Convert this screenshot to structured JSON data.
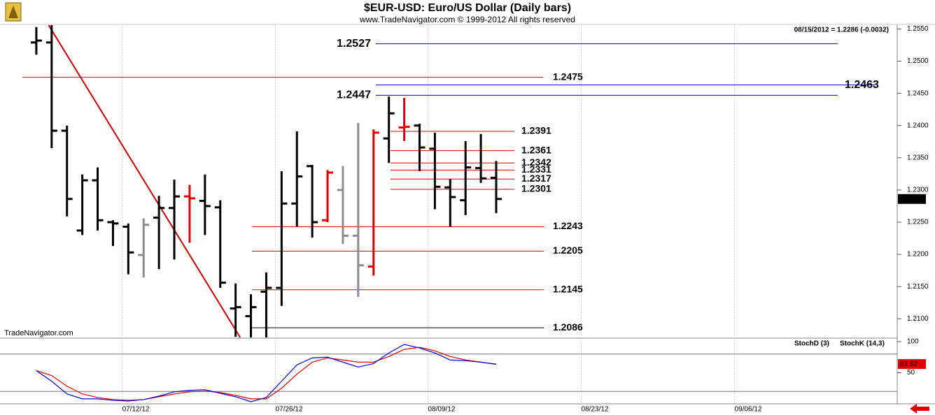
{
  "chart_data": {
    "type": "ohlc",
    "title": "$EUR-USD:  Euro/US Dollar  (Daily bars)",
    "subtitle": "www.TradeNavigator.com © 1999-2012 All rights reserved",
    "info": "08/15/2012 = 1.2286 (-0.0032)",
    "watermark": "TradeNavigator.com",
    "xlim": [
      -2.37,
      56.07
    ],
    "xticks": [
      {
        "value": 5.6,
        "label": "07/12/12"
      },
      {
        "value": 15.6,
        "label": "07/26/12"
      },
      {
        "value": 25.55,
        "label": "08/09/12"
      },
      {
        "value": 35.55,
        "label": "08/23/12"
      },
      {
        "value": 45.55,
        "label": "09/06/12"
      }
    ],
    "ylim": [
      1.2071,
      1.2557
    ],
    "yticks": [
      {
        "value": 1.255,
        "label": "1.2550"
      },
      {
        "value": 1.25,
        "label": "1.2500"
      },
      {
        "value": 1.245,
        "label": "1.2450"
      },
      {
        "value": 1.24,
        "label": "1.2400"
      },
      {
        "value": 1.235,
        "label": "1.2350"
      },
      {
        "value": 1.23,
        "label": "1.2300"
      },
      {
        "value": 1.225,
        "label": "1.2250"
      },
      {
        "value": 1.22,
        "label": "1.2200"
      },
      {
        "value": 1.215,
        "label": "1.2150"
      },
      {
        "value": 1.21,
        "label": "1.2100"
      }
    ],
    "open": [
      1.2529,
      1.2529,
      1.2392,
      1.2237,
      1.2315,
      1.225,
      1.2243,
      1.2199,
      1.2257,
      1.2272,
      1.229,
      1.2283,
      1.2273,
      1.2116,
      1.2104,
      1.2142,
      1.2148,
      1.2279,
      1.2337,
      1.2253,
      1.23,
      1.2229,
      1.2181,
      1.238,
      1.2397,
      1.24,
      1.2364,
      1.2304,
      1.2284,
      1.2334,
      1.2319
    ],
    "high": [
      1.2553,
      1.2556,
      1.24,
      1.2324,
      1.2335,
      1.2253,
      1.2248,
      1.2256,
      1.2291,
      1.2316,
      1.2308,
      1.2324,
      1.2284,
      1.2155,
      1.2138,
      1.2172,
      1.2329,
      1.2391,
      1.2339,
      1.2331,
      1.2337,
      1.2404,
      1.2394,
      1.2445,
      1.2443,
      1.2403,
      1.2389,
      1.2317,
      1.2376,
      1.2387,
      1.2345
    ],
    "low": [
      1.251,
      1.2365,
      1.2259,
      1.223,
      1.2237,
      1.2213,
      1.2169,
      1.2164,
      1.2177,
      1.2192,
      1.2218,
      1.223,
      1.2148,
      1.2072,
      1.2071,
      1.2071,
      1.212,
      1.2243,
      1.2226,
      1.225,
      1.2216,
      1.2134,
      1.2167,
      1.2342,
      1.2376,
      1.2329,
      1.227,
      1.2243,
      1.2261,
      1.2311,
      1.2264
    ],
    "close": [
      1.2532,
      1.2392,
      1.2286,
      1.2315,
      1.2253,
      1.2248,
      1.2203,
      1.2246,
      1.2272,
      1.229,
      1.2287,
      1.2275,
      1.2156,
      1.2118,
      1.2118,
      1.2148,
      1.2279,
      1.2321,
      1.225,
      1.2327,
      1.2229,
      1.2183,
      1.2389,
      1.2419,
      1.2398,
      1.2366,
      1.2305,
      1.2289,
      1.2335,
      1.2318,
      1.2286
    ],
    "colors": [
      "#000000",
      "#000000",
      "#000000",
      "#000000",
      "#000000",
      "#000000",
      "#000000",
      "#8c8c8c",
      "#000000",
      "#000000",
      "#e00000",
      "#000000",
      "#000000",
      "#000000",
      "#000000",
      "#000000",
      "#000000",
      "#000000",
      "#000000",
      "#e00000",
      "#8c8c8c",
      "#8c8c8c",
      "#e00000",
      "#000000",
      "#e00000",
      "#000000",
      "#000000",
      "#000000",
      "#000000",
      "#000000",
      "#000000"
    ],
    "trendline": {
      "x": [
        0.8,
        13.3
      ],
      "values": [
        1.2556,
        1.2071
      ],
      "color": "#d00000"
    },
    "levels": [
      {
        "value": 1.2527,
        "color": "#0000cc"
      },
      {
        "value": 1.2475,
        "color": "#e00000"
      },
      {
        "value": 1.2463,
        "color": "#0000cc"
      },
      {
        "value": 1.2447,
        "color": "#0000cc"
      },
      {
        "value": 1.2391,
        "color": "#e00000"
      },
      {
        "value": 1.2361,
        "color": "#e00000"
      },
      {
        "value": 1.2342,
        "color": "#e00000"
      },
      {
        "value": 1.2331,
        "color": "#e00000"
      },
      {
        "value": 1.2317,
        "color": "#e00000"
      },
      {
        "value": 1.2301,
        "color": "#e00000"
      },
      {
        "value": 1.2243,
        "color": "#e00000"
      },
      {
        "value": 1.2205,
        "color": "#e00000"
      },
      {
        "value": 1.2145,
        "color": "#e00000"
      },
      {
        "value": 1.2086,
        "color": "#000000"
      }
    ],
    "stochastic": {
      "ylim": [
        0,
        104.5
      ],
      "yticks": [
        100,
        50
      ],
      "levels": [
        80,
        20
      ],
      "series": [
        {
          "name": "StochD (3)",
          "color": "#e00000",
          "values": [
            53.4,
            45.5,
            28.4,
            15.9,
            10.2,
            6.8,
            5.7,
            6.8,
            11.4,
            15.9,
            19.3,
            20.5,
            18.2,
            13.6,
            8,
            8,
            25,
            47.7,
            67,
            73.9,
            70.5,
            67,
            67,
            76.1,
            87.5,
            90.9,
            85.2,
            76.1,
            70.5,
            67,
            63.92
          ]
        },
        {
          "name": "StochK (14,3)",
          "color": "#0000e0",
          "values": [
            53.4,
            36.4,
            15.9,
            8,
            8,
            5.7,
            4.5,
            6.8,
            12.5,
            19.3,
            21.6,
            22.7,
            17,
            11.4,
            3.4,
            10.2,
            36.4,
            62.5,
            73.9,
            75,
            67,
            59.1,
            64.8,
            81.8,
            95.5,
            89.8,
            81.8,
            70.5,
            69.3,
            67,
            63.6
          ]
        }
      ]
    }
  }
}
